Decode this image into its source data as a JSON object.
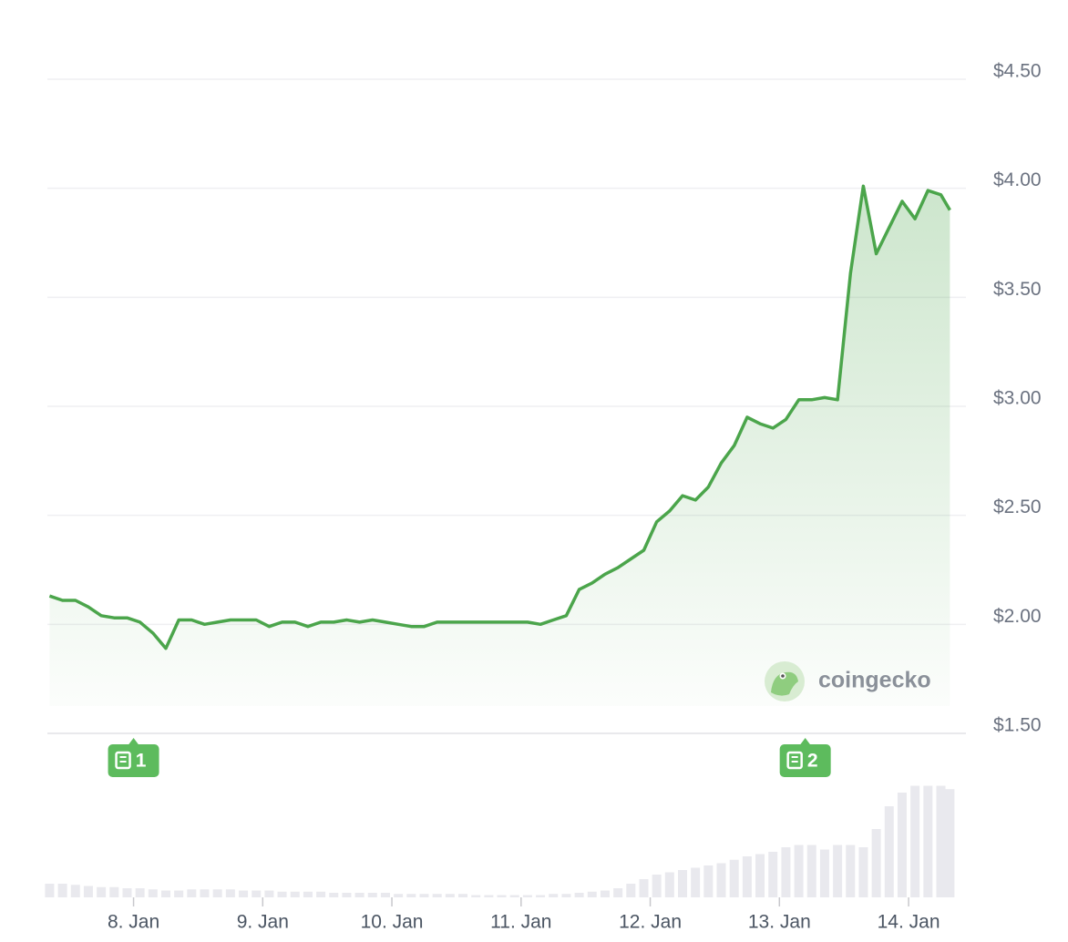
{
  "chart_data": [
    {
      "type": "line",
      "x": [
        7.35,
        7.45,
        7.55,
        7.65,
        7.75,
        7.85,
        7.95,
        8.05,
        8.15,
        8.25,
        8.35,
        8.45,
        8.55,
        8.65,
        8.75,
        8.85,
        8.95,
        9.05,
        9.15,
        9.25,
        9.35,
        9.45,
        9.55,
        9.65,
        9.75,
        9.85,
        9.95,
        10.05,
        10.15,
        10.25,
        10.35,
        10.45,
        10.55,
        10.65,
        10.75,
        10.85,
        10.95,
        11.05,
        11.15,
        11.25,
        11.35,
        11.45,
        11.55,
        11.65,
        11.75,
        11.85,
        11.95,
        12.05,
        12.15,
        12.25,
        12.35,
        12.45,
        12.55,
        12.65,
        12.75,
        12.85,
        12.95,
        13.05,
        13.15,
        13.25,
        13.35,
        13.45,
        13.55,
        13.65,
        13.75,
        13.85,
        13.95,
        14.05,
        14.15,
        14.25,
        14.32
      ],
      "values": [
        2.13,
        2.11,
        2.11,
        2.08,
        2.04,
        2.03,
        2.03,
        2.01,
        1.96,
        1.89,
        2.02,
        2.02,
        2.0,
        2.01,
        2.02,
        2.02,
        2.02,
        1.99,
        2.01,
        2.01,
        1.99,
        2.01,
        2.01,
        2.02,
        2.01,
        2.02,
        2.01,
        2.0,
        1.99,
        1.99,
        2.01,
        2.01,
        2.01,
        2.01,
        2.01,
        2.01,
        2.01,
        2.01,
        2.0,
        2.02,
        2.04,
        2.16,
        2.19,
        2.23,
        2.26,
        2.3,
        2.34,
        2.47,
        2.52,
        2.59,
        2.57,
        2.63,
        2.74,
        2.82,
        2.95,
        2.92,
        2.9,
        2.94,
        3.03,
        3.03,
        3.04,
        3.03,
        3.61,
        4.01,
        3.7,
        3.82,
        3.94,
        3.86,
        3.99,
        3.97,
        3.9
      ],
      "color": "#4ba54b",
      "xlim": [
        7.333,
        14.444
      ],
      "ylim": [
        1.5,
        4.5
      ],
      "yticks": [
        {
          "value": 1.5,
          "label": "$1.50"
        },
        {
          "value": 2.0,
          "label": "$2.00"
        },
        {
          "value": 2.5,
          "label": "$2.50"
        },
        {
          "value": 3.0,
          "label": "$3.00"
        },
        {
          "value": 3.5,
          "label": "$3.50"
        },
        {
          "value": 4.0,
          "label": "$4.00"
        },
        {
          "value": 4.5,
          "label": "$4.50"
        }
      ],
      "xticks": [
        {
          "value": 8,
          "label": "8. Jan"
        },
        {
          "value": 9,
          "label": "9. Jan"
        },
        {
          "value": 10,
          "label": "10. Jan"
        },
        {
          "value": 11,
          "label": "11. Jan"
        },
        {
          "value": 12,
          "label": "12. Jan"
        },
        {
          "value": 13,
          "label": "13. Jan"
        },
        {
          "value": 14,
          "label": "14. Jan"
        }
      ],
      "grid": true,
      "annotations": [
        {
          "label": "1",
          "x": 8.0
        },
        {
          "label": "2",
          "x": 13.2
        }
      ],
      "watermark": "coingecko"
    },
    {
      "type": "bar",
      "x": [
        7.35,
        7.45,
        7.55,
        7.65,
        7.75,
        7.85,
        7.95,
        8.05,
        8.15,
        8.25,
        8.35,
        8.45,
        8.55,
        8.65,
        8.75,
        8.85,
        8.95,
        9.05,
        9.15,
        9.25,
        9.35,
        9.45,
        9.55,
        9.65,
        9.75,
        9.85,
        9.95,
        10.05,
        10.15,
        10.25,
        10.35,
        10.45,
        10.55,
        10.65,
        10.75,
        10.85,
        10.95,
        11.05,
        11.15,
        11.25,
        11.35,
        11.45,
        11.55,
        11.65,
        11.75,
        11.85,
        11.95,
        12.05,
        12.15,
        12.25,
        12.35,
        12.45,
        12.55,
        12.65,
        12.75,
        12.85,
        12.95,
        13.05,
        13.15,
        13.25,
        13.35,
        13.45,
        13.55,
        13.65,
        13.75,
        13.85,
        13.95,
        14.05,
        14.15,
        14.25,
        14.32
      ],
      "values": [
        12,
        12,
        11,
        10,
        9,
        9,
        8,
        8,
        7,
        6,
        6,
        7,
        7,
        7,
        7,
        6,
        6,
        6,
        5,
        5,
        5,
        5,
        4,
        4,
        4,
        4,
        4,
        3,
        3,
        3,
        3,
        3,
        3,
        2,
        2,
        2,
        2,
        2,
        2,
        3,
        3,
        4,
        5,
        6,
        8,
        12,
        16,
        20,
        22,
        24,
        26,
        28,
        30,
        33,
        36,
        38,
        40,
        44,
        46,
        46,
        42,
        46,
        46,
        44,
        60,
        80,
        92,
        98,
        98,
        98,
        95
      ],
      "color": "#e9e9ee",
      "xlim": [
        7.333,
        14.444
      ],
      "ylim": [
        0,
        100
      ]
    }
  ]
}
